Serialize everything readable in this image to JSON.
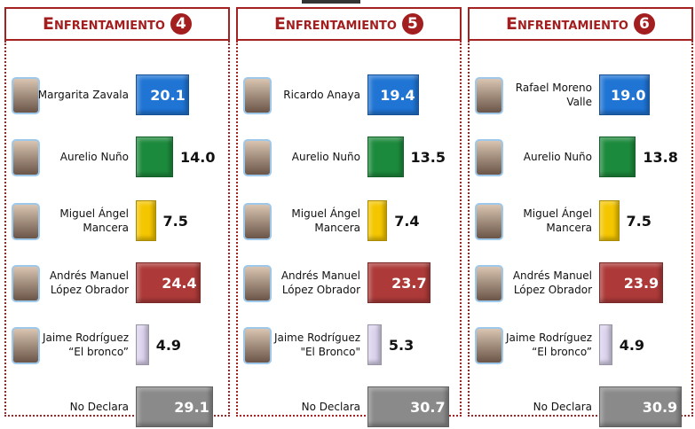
{
  "chart_data": [
    {
      "type": "hbar",
      "title": "Enfrentamiento",
      "number": "4",
      "categories": [
        "Margarita Zavala",
        "Aurelio Nuño",
        "Miguel Ángel Mancera",
        "Andrés Manuel López Obrador",
        "Jaime Rodríguez “El bronco”",
        "No Declara"
      ],
      "values": [
        20.1,
        14.0,
        7.5,
        24.4,
        4.9,
        29.1
      ],
      "value_labels": [
        "20.1",
        "14.0",
        "7.5",
        "24.4",
        "4.9",
        "29.1"
      ],
      "colors": [
        "#1f74d4",
        "#1c8a3c",
        "#f4c600",
        "#ad3a38",
        "#dcd3ee",
        "#8a8a8a"
      ]
    },
    {
      "type": "hbar",
      "title": "Enfrentamiento",
      "number": "5",
      "categories": [
        "Ricardo Anaya",
        "Aurelio Nuño",
        "Miguel Ángel Mancera",
        "Andrés Manuel López Obrador",
        "Jaime Rodríguez \"El Bronco\"",
        "No Declara"
      ],
      "values": [
        19.4,
        13.5,
        7.4,
        23.7,
        5.3,
        30.7
      ],
      "value_labels": [
        "19.4",
        "13.5",
        "7.4",
        "23.7",
        "5.3",
        "30.7"
      ],
      "colors": [
        "#1f74d4",
        "#1c8a3c",
        "#f4c600",
        "#ad3a38",
        "#dcd3ee",
        "#8a8a8a"
      ]
    },
    {
      "type": "hbar",
      "title": "Enfrentamiento",
      "number": "6",
      "categories": [
        "Rafael Moreno Valle",
        "Aurelio Nuño",
        "Miguel Ángel Mancera",
        "Andrés Manuel López Obrador",
        "Jaime Rodríguez “El bronco”",
        "No Declara"
      ],
      "values": [
        19.0,
        13.8,
        7.5,
        23.9,
        4.9,
        30.9
      ],
      "value_labels": [
        "19.0",
        "13.8",
        "7.5",
        "23.9",
        "4.9",
        "30.9"
      ],
      "colors": [
        "#1f74d4",
        "#1c8a3c",
        "#f4c600",
        "#ad3a38",
        "#dcd3ee",
        "#8a8a8a"
      ]
    }
  ]
}
